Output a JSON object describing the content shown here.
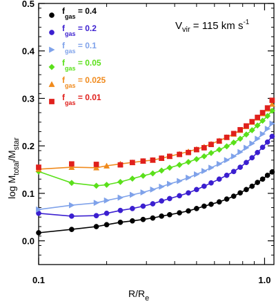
{
  "chart_data": {
    "type": "line",
    "title": "",
    "annotation": {
      "main": "V",
      "sub": "vir",
      "rest": " = 115 km s",
      "sup": "-1"
    },
    "xlabel": {
      "main": "R/R",
      "sub": "e"
    },
    "ylabel": {
      "main": "log M",
      "sub1": "total",
      "mid": "/M",
      "sub2": "star"
    },
    "xscale": "log",
    "xlim": [
      0.1,
      1.1
    ],
    "ylim": [
      -0.05,
      0.5
    ],
    "xticks": [
      0.1,
      1.0
    ],
    "xtick_labels": [
      "0.1",
      "1.0"
    ],
    "yticks": [
      0.0,
      0.1,
      0.2,
      0.3,
      0.4,
      0.5
    ],
    "ytick_labels": [
      "0.0",
      "0.1",
      "0.2",
      "0.3",
      "0.4",
      "0.5"
    ],
    "legend_position": "top-left",
    "grid": false,
    "series": [
      {
        "name": {
          "main": "f",
          "sub": "gas",
          "rest": " = 0.4"
        },
        "color": "#000000",
        "marker": "circle",
        "line": true,
        "x": [
          0.1,
          0.14,
          0.18,
          0.2,
          0.23,
          0.26,
          0.29,
          0.32,
          0.35,
          0.38,
          0.42,
          0.46,
          0.5,
          0.54,
          0.58,
          0.63,
          0.68,
          0.73,
          0.78,
          0.83,
          0.88,
          0.93,
          0.98,
          1.03,
          1.08
        ],
        "y": [
          0.017,
          0.024,
          0.03,
          0.034,
          0.039,
          0.042,
          0.045,
          0.048,
          0.052,
          0.055,
          0.059,
          0.063,
          0.068,
          0.073,
          0.077,
          0.082,
          0.088,
          0.094,
          0.101,
          0.108,
          0.115,
          0.123,
          0.13,
          0.138,
          0.145
        ]
      },
      {
        "name": {
          "main": "f",
          "sub": "gas",
          "rest": " = 0.2"
        },
        "color": "#3b1fd0",
        "marker": "circle",
        "line": true,
        "x": [
          0.1,
          0.14,
          0.18,
          0.2,
          0.23,
          0.26,
          0.29,
          0.32,
          0.35,
          0.38,
          0.42,
          0.46,
          0.5,
          0.54,
          0.58,
          0.63,
          0.68,
          0.73,
          0.78,
          0.83,
          0.88,
          0.93,
          0.98,
          1.03,
          1.08
        ],
        "y": [
          0.058,
          0.052,
          0.053,
          0.058,
          0.064,
          0.068,
          0.073,
          0.078,
          0.084,
          0.089,
          0.095,
          0.101,
          0.108,
          0.115,
          0.122,
          0.13,
          0.138,
          0.146,
          0.155,
          0.165,
          0.175,
          0.186,
          0.197,
          0.208,
          0.22
        ]
      },
      {
        "name": {
          "main": "f",
          "sub": "gas",
          "rest": " = 0.1"
        },
        "color": "#7fa2ea",
        "marker": "triangle-right",
        "line": true,
        "x": [
          0.1,
          0.14,
          0.18,
          0.2,
          0.23,
          0.26,
          0.29,
          0.32,
          0.35,
          0.38,
          0.42,
          0.46,
          0.5,
          0.54,
          0.58,
          0.63,
          0.68,
          0.73,
          0.78,
          0.83,
          0.88,
          0.93,
          0.98,
          1.03,
          1.08
        ],
        "y": [
          0.066,
          0.075,
          0.08,
          0.085,
          0.091,
          0.097,
          0.102,
          0.108,
          0.114,
          0.12,
          0.126,
          0.133,
          0.14,
          0.147,
          0.154,
          0.162,
          0.17,
          0.178,
          0.187,
          0.196,
          0.205,
          0.215,
          0.225,
          0.236,
          0.247
        ]
      },
      {
        "name": {
          "main": "f",
          "sub": "gas",
          "rest": " = 0.05"
        },
        "color": "#5ae01a",
        "marker": "diamond",
        "line": true,
        "x": [
          0.1,
          0.14,
          0.18,
          0.2,
          0.23,
          0.26,
          0.29,
          0.32,
          0.35,
          0.38,
          0.42,
          0.46,
          0.5,
          0.54,
          0.58,
          0.63,
          0.68,
          0.73,
          0.78,
          0.83,
          0.88,
          0.93,
          0.98,
          1.03,
          1.08
        ],
        "y": [
          0.146,
          0.122,
          0.116,
          0.118,
          0.124,
          0.131,
          0.137,
          0.142,
          0.148,
          0.154,
          0.16,
          0.166,
          0.172,
          0.178,
          0.185,
          0.192,
          0.199,
          0.207,
          0.215,
          0.224,
          0.233,
          0.243,
          0.253,
          0.263,
          0.274
        ]
      },
      {
        "name": {
          "main": "f",
          "sub": "gas",
          "rest": " = 0.025"
        },
        "color": "#f08a1c",
        "marker": "triangle-up",
        "line": true,
        "x": [
          0.1,
          0.14,
          0.18,
          0.2,
          0.23,
          0.26,
          0.29,
          0.32,
          0.35,
          0.38,
          0.42,
          0.46,
          0.5,
          0.54,
          0.58,
          0.63,
          0.68,
          0.73,
          0.78,
          0.83,
          0.88,
          0.93,
          0.98,
          1.03,
          1.08
        ],
        "y": [
          0.151,
          0.155,
          0.154,
          0.158,
          0.162,
          0.165,
          0.168,
          0.17,
          0.174,
          0.178,
          0.183,
          0.188,
          0.193,
          0.198,
          0.204,
          0.211,
          0.218,
          0.225,
          0.233,
          0.241,
          0.25,
          0.259,
          0.268,
          0.278,
          0.288
        ]
      },
      {
        "name": {
          "main": "f",
          "sub": "gas",
          "rest": " = 0.01"
        },
        "color": "#e0201c",
        "marker": "square",
        "line": false,
        "x": [
          0.1,
          0.14,
          0.18,
          0.23,
          0.26,
          0.29,
          0.32,
          0.35,
          0.38,
          0.42,
          0.46,
          0.5,
          0.54,
          0.58,
          0.63,
          0.68,
          0.73,
          0.78,
          0.83,
          0.88,
          0.93,
          0.98,
          1.03,
          1.08
        ],
        "y": [
          0.155,
          0.162,
          0.161,
          0.16,
          0.165,
          0.168,
          0.17,
          0.174,
          0.178,
          0.182,
          0.186,
          0.192,
          0.196,
          0.203,
          0.21,
          0.218,
          0.226,
          0.234,
          0.242,
          0.251,
          0.26,
          0.27,
          0.28,
          0.296
        ]
      }
    ]
  }
}
